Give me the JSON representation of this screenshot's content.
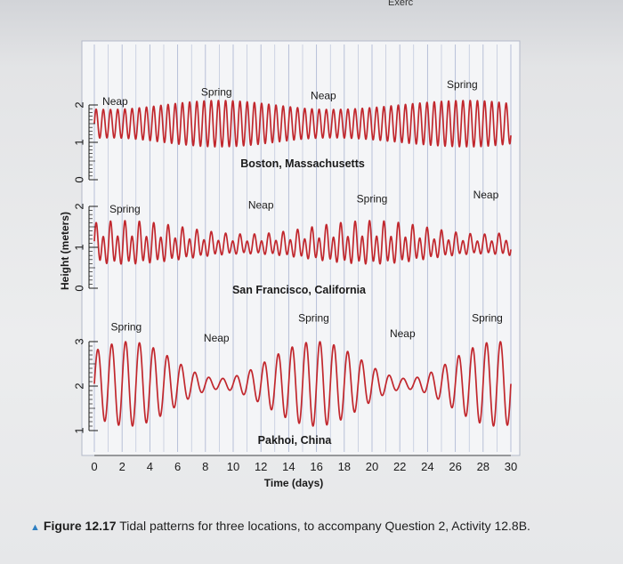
{
  "header_text": "Exerc",
  "caption": {
    "figure_label": "Figure 12.17",
    "text": " Tidal patterns for three locations, to accompany Question 2, Activity 12.8B."
  },
  "colors": {
    "tide_line": "#c1272d",
    "grid": "#9aa7c9",
    "panel_bg": "#f4f5f7",
    "caption_marker": "#2e7fc2"
  },
  "chart_data": {
    "type": "line",
    "x_axis": {
      "label": "Time (days)",
      "range": [
        0,
        30
      ],
      "ticks": [
        0,
        2,
        4,
        6,
        8,
        10,
        12,
        14,
        16,
        18,
        20,
        22,
        24,
        26,
        28,
        30
      ]
    },
    "y_axis_label": "Height (meters)",
    "grid": true,
    "panels": [
      {
        "title": "Boston, Massachusetts",
        "y_ticks": [
          0,
          1,
          2
        ],
        "tide": {
          "type": "semidiurnal",
          "cycles_per_day": 1.93,
          "mean": 1.5,
          "spring_amplitude": 0.62,
          "neap_amplitude": 0.38,
          "spring_days": [
            9,
            27
          ],
          "neap_days": [
            1,
            17
          ]
        },
        "labels": [
          {
            "text": "Neap",
            "day": 1.5,
            "height": 2.0
          },
          {
            "text": "Spring",
            "day": 8.8,
            "height": 2.25
          },
          {
            "text": "Neap",
            "day": 16.5,
            "height": 2.15
          },
          {
            "text": "Spring",
            "day": 26.5,
            "height": 2.45
          }
        ]
      },
      {
        "title": "San Francisco, California",
        "y_ticks": [
          0,
          1,
          2
        ],
        "tide": {
          "type": "mixed",
          "cycles_per_day": 1.93,
          "mean": 1.05,
          "spring_amplitude": 0.55,
          "neap_amplitude": 0.25,
          "spring_days": [
            2,
            20
          ],
          "neap_days": [
            11,
            28
          ]
        },
        "labels": [
          {
            "text": "Spring",
            "day": 2.2,
            "height": 1.85
          },
          {
            "text": "Neap",
            "day": 12.0,
            "height": 1.95
          },
          {
            "text": "Spring",
            "day": 20.0,
            "height": 2.1
          },
          {
            "text": "Neap",
            "day": 28.2,
            "height": 2.2
          }
        ]
      },
      {
        "title": "Pakhoi, China",
        "y_ticks": [
          1,
          2,
          3
        ],
        "tide": {
          "type": "diurnal",
          "cycles_per_day": 1.0,
          "mean": 2.05,
          "spring_amplitude": 0.95,
          "neap_amplitude": 0.12,
          "spring_days": [
            2.5,
            16,
            29
          ],
          "neap_days": [
            9,
            22.5
          ]
        },
        "labels": [
          {
            "text": "Spring",
            "day": 2.3,
            "height": 3.25
          },
          {
            "text": "Neap",
            "day": 8.8,
            "height": 3.0
          },
          {
            "text": "Spring",
            "day": 15.8,
            "height": 3.45
          },
          {
            "text": "Neap",
            "day": 22.2,
            "height": 3.1
          },
          {
            "text": "Spring",
            "day": 28.3,
            "height": 3.45
          }
        ]
      }
    ]
  }
}
